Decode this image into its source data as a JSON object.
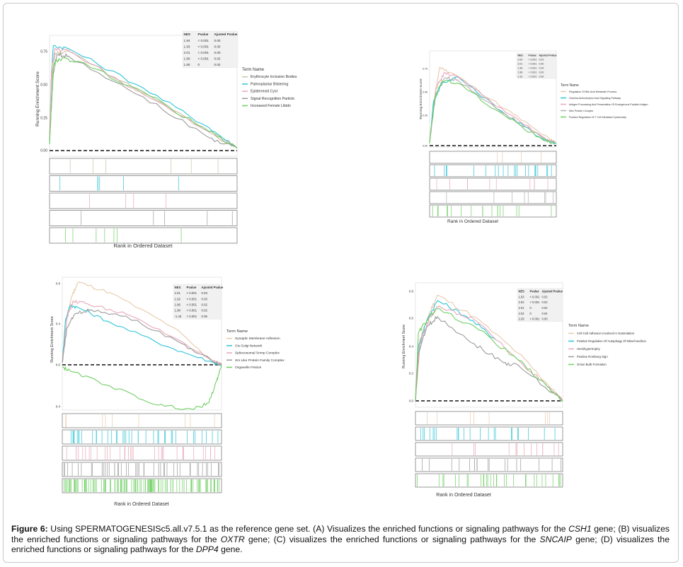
{
  "figure": {
    "panels": [
      {
        "id": "A",
        "ylabel": "Running Enrichment Score",
        "xlabel": "Rank in Ordered Dataset",
        "ticks": [
          "0.75",
          "0.50",
          "0.25",
          "0.00"
        ],
        "table": {
          "headers": [
            "NES",
            "Pvalue",
            "Ajusted Pvalue"
          ],
          "rows": [
            [
              "1.94",
              "< 0.001",
              "0.00"
            ],
            [
              "1.93",
              "< 0.001",
              "0.00"
            ],
            [
              "2.01",
              "< 0.001",
              "0.00"
            ],
            [
              "1.80",
              "< 0.001",
              "0.02"
            ],
            [
              "1.80",
              "0",
              "0.02"
            ]
          ]
        },
        "legend_title": "Term Name",
        "legend": [
          {
            "label": "Erythrocyte Inclusion Bodies",
            "color": "#c9c3a6"
          },
          {
            "label": "Palmoplantar Blistering",
            "color": "#2ec4d6"
          },
          {
            "label": "Epidermoid Cyst",
            "color": "#e8a7b8"
          },
          {
            "label": "Signal Recognition Particle",
            "color": "#9a9a9a"
          },
          {
            "label": "Increased Female Libido",
            "color": "#6fcf63"
          }
        ]
      },
      {
        "id": "B",
        "ylabel": "Running Enrichment Score",
        "xlabel": "Rank in Ordered Dataset",
        "ticks": [
          "0.75",
          "0.50",
          "0.25",
          "0.00"
        ],
        "table": {
          "headers": [
            "NES",
            "Pvalue",
            "Ajusted Pvalue"
          ],
          "rows": [
            [
              "2.00",
              "< 0.001",
              "0.02"
            ],
            [
              "2.01",
              "< 0.001",
              "0.00"
            ],
            [
              "1.96",
              "< 0.001",
              "0.00"
            ],
            [
              "1.89",
              "< 0.001",
              "0.00"
            ],
            [
              "1.92",
              "< 0.001",
              "0.00"
            ]
          ]
        },
        "legend_title": "Term Name",
        "legend": [
          {
            "label": "Regulation Of Bile Acid Metabolic Process",
            "color": "#e8c9b0"
          },
          {
            "label": "Gamma-Aminobutyric Acid Signaling Pathway",
            "color": "#2ec4d6"
          },
          {
            "label": "Antigen Processing And Presentation Of Endogenous Peptide Antigen",
            "color": "#e8a7b8"
          },
          {
            "label": "Mhc Protein Complex",
            "color": "#b0b0b0"
          },
          {
            "label": "Positive Regulation Of T Cell Mediated Cytotoxicity",
            "color": "#6fcf63"
          }
        ]
      },
      {
        "id": "C",
        "ylabel": "Running Enrichment Score",
        "xlabel": "Rank in Ordered Dataset",
        "ticks": [
          "0.8",
          "0.4",
          "0.0",
          "0.4"
        ],
        "table": {
          "headers": [
            "NES",
            "Pvalue",
            "Ajusted Pvalue"
          ],
          "rows": [
            [
              "2.01",
              "< 0.001",
              "0.03"
            ],
            [
              "1.92",
              "< 0.001",
              "0.03"
            ],
            [
              "1.86",
              "< 0.001",
              "0.02"
            ],
            [
              "1.98",
              "< 0.001",
              "0.02"
            ],
            [
              "-1.43",
              "< 0.001",
              "0.05"
            ]
          ]
        },
        "legend_title": "Term Name",
        "legend": [
          {
            "label": "Synaptic Membrane Adhesion",
            "color": "#e8c9a8"
          },
          {
            "label": "Cis Golgi Network",
            "color": "#2ec4d6"
          },
          {
            "label": "Spliceosomal Snrnp Complex",
            "color": "#e8a7b8"
          },
          {
            "label": "Sm Like Protein Family Complex",
            "color": "#9a9a9a"
          },
          {
            "label": "Organelle Fission",
            "color": "#6fcf63"
          }
        ]
      },
      {
        "id": "D",
        "ylabel": "Running Enrichment Score",
        "xlabel": "Rank in Ordered Dataset",
        "ticks": [
          "0.8",
          "0.6",
          "0.4",
          "0.2",
          "0.0"
        ],
        "table": {
          "headers": [
            "NES",
            "Pvalue",
            "Ajusted Pvalue"
          ],
          "rows": [
            [
              "1.93",
              "< 0.001",
              "0.02"
            ],
            [
              "2.02",
              "< 0.001",
              "0.02"
            ],
            [
              "2.01",
              "0",
              "0.04"
            ],
            [
              "2.04",
              "0",
              "0.04"
            ],
            [
              "2.29",
              "< 0.001",
              "0.00"
            ]
          ]
        },
        "legend_title": "Term Name",
        "legend": [
          {
            "label": "Cell Cell Adhesion Involved In Gastrulation",
            "color": "#e8c9b0"
          },
          {
            "label": "Positive Regulation Of Autophagy Of Mitochondrion",
            "color": "#2ec4d6"
          },
          {
            "label": "Hemihypertrophy",
            "color": "#e8a7b8"
          },
          {
            "label": "Positive Romberg Sign",
            "color": "#9a9a9a"
          },
          {
            "label": "Onion Bulb Formation",
            "color": "#6fcf63"
          }
        ]
      }
    ]
  },
  "caption": {
    "label": "Figure 6:",
    "t1": " Using SPERMATOGENESISc5.all.v7.5.1 as the reference gene set. (A) Visualizes the enriched functions or signaling pathways for the ",
    "g1": "CSH1",
    "t2": " gene; (B) visualizes the enriched functions or signaling pathways for the ",
    "g2": "OXTR",
    "t3": " gene; (C) visualizes the enriched functions or signaling pathways for the ",
    "g3": "SNCAIP",
    "t4": " gene; (D) visualizes the enriched functions or signaling pathways for the ",
    "g4": "DPP4",
    "t5": " gene."
  }
}
